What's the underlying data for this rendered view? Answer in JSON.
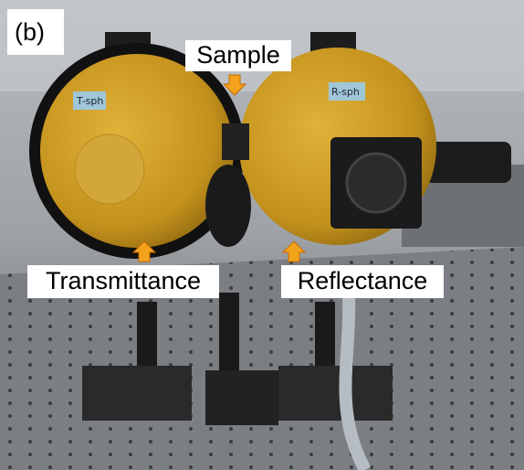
{
  "panel_label": "(b)",
  "sample_label": "Sample",
  "transmittance_label": "Transmittance",
  "reflectance_label": "Reflectance",
  "left_sphere_tag": "T-sph",
  "right_sphere_tag": "R-sph"
}
